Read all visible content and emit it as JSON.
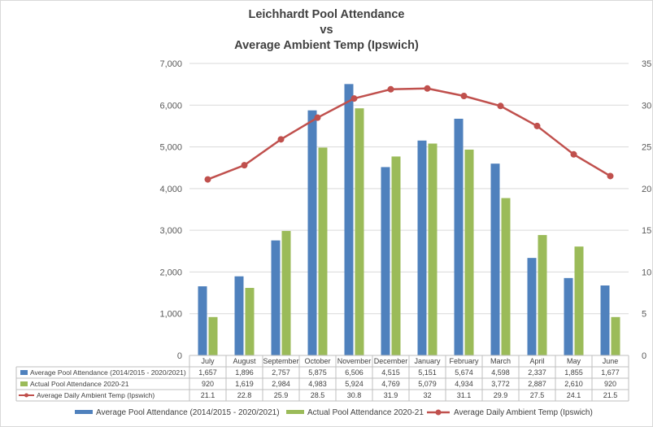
{
  "chart_data": {
    "type": "bar",
    "title_lines": [
      "Leichhardt Pool Attendance",
      "vs",
      "Average Ambient Temp (Ipswich)"
    ],
    "categories": [
      "July",
      "August",
      "September",
      "October",
      "November",
      "December",
      "January",
      "February",
      "March",
      "April",
      "May",
      "June"
    ],
    "series": [
      {
        "name": "Average Pool Attendance (2014/2015 - 2020/2021)",
        "type": "bar",
        "axis": "left",
        "color": "#4f81bd",
        "values": [
          1657,
          1896,
          2757,
          5875,
          6506,
          4515,
          5151,
          5674,
          4598,
          2337,
          1855,
          1677
        ],
        "labels": [
          "1,657",
          "1,896",
          "2,757",
          "5,875",
          "6,506",
          "4,515",
          "5,151",
          "5,674",
          "4,598",
          "2,337",
          "1,855",
          "1,677"
        ]
      },
      {
        "name": "Actual Pool Attendance 2020-21",
        "type": "bar",
        "axis": "left",
        "color": "#9bbb59",
        "values": [
          920,
          1619,
          2984,
          4983,
          5924,
          4769,
          5079,
          4934,
          3772,
          2887,
          2610,
          920
        ],
        "labels": [
          "920",
          "1,619",
          "2,984",
          "4,983",
          "5,924",
          "4,769",
          "5,079",
          "4,934",
          "3,772",
          "2,887",
          "2,610",
          "920"
        ]
      },
      {
        "name": "Average Daily Ambient Temp (Ipswich)",
        "type": "line",
        "axis": "right",
        "color": "#c0504d",
        "values": [
          21.1,
          22.8,
          25.9,
          28.5,
          30.8,
          31.9,
          32,
          31.1,
          29.9,
          27.5,
          24.1,
          21.5
        ],
        "labels": [
          "21.1",
          "22.8",
          "25.9",
          "28.5",
          "30.8",
          "31.9",
          "32",
          "31.1",
          "29.9",
          "27.5",
          "24.1",
          "21.5"
        ]
      }
    ],
    "left_axis": {
      "min": 0,
      "max": 7000,
      "step": 1000,
      "tick_labels": [
        "0",
        "1,000",
        "2,000",
        "3,000",
        "4,000",
        "5,000",
        "6,000",
        "7,000"
      ]
    },
    "right_axis": {
      "min": 0,
      "max": 35,
      "step": 5,
      "tick_labels": [
        "0",
        "5",
        "10",
        "15",
        "20",
        "25",
        "30",
        "35"
      ]
    },
    "grid": true,
    "legend_position": "bottom",
    "data_table": true
  }
}
